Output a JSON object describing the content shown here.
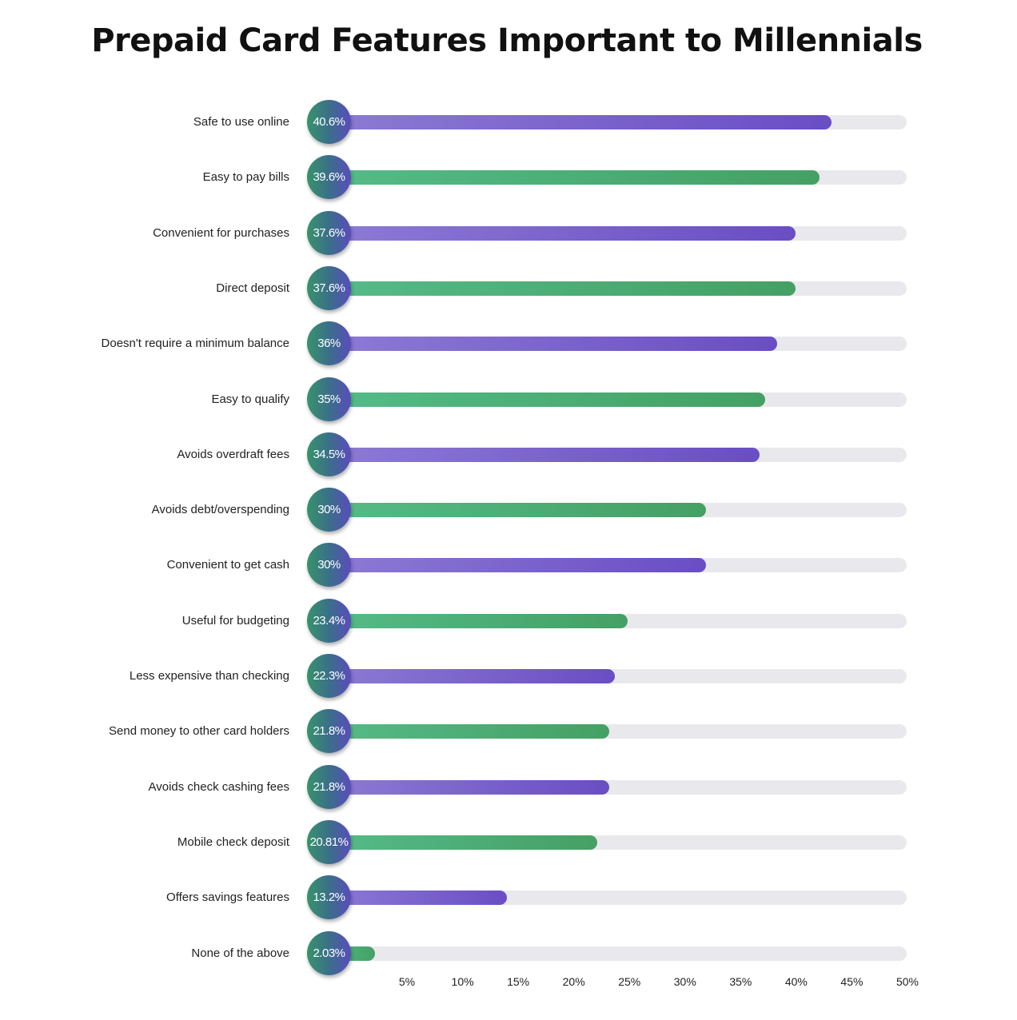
{
  "chart_data": {
    "type": "bar",
    "orientation": "horizontal",
    "title": "Prepaid Card Features Important to Millennials",
    "categories": [
      "Safe to use online",
      "Easy to pay bills",
      "Convenient for purchases",
      "Direct deposit",
      "Doesn't require a minimum balance",
      "Easy to qualify",
      "Avoids overdraft fees",
      "Avoids debt/overspending",
      "Convenient to get cash",
      "Useful for budgeting",
      "Less expensive than checking",
      "Send money to other card holders",
      "Avoids check cashing fees",
      "Mobile check deposit",
      "Offers savings features",
      "None of the above"
    ],
    "values": [
      40.6,
      39.6,
      37.6,
      37.6,
      36,
      35,
      34.5,
      30,
      30,
      23.4,
      22.3,
      21.8,
      21.8,
      20.81,
      13.2,
      2.03
    ],
    "data_labels": [
      "40.6%",
      "39.6%",
      "37.6%",
      "37.6%",
      "36%",
      "35%",
      "34.5%",
      "30%",
      "30%",
      "23.4%",
      "22.3%",
      "21.8%",
      "21.8%",
      "20.81%",
      "13.2%",
      "2.03%"
    ],
    "xlim": [
      0,
      50
    ],
    "x_ticks": [
      "5%",
      "10%",
      "15%",
      "20%",
      "25%",
      "30%",
      "35%",
      "40%",
      "45%",
      "50%"
    ],
    "x_tick_values": [
      5,
      10,
      15,
      20,
      25,
      30,
      35,
      40,
      45,
      50
    ],
    "grid": false,
    "colors": {
      "purple": "#6a4dc4",
      "green": "#45a064",
      "track": "#e9e8ed"
    },
    "bar_color_pattern": [
      "purple",
      "green"
    ]
  }
}
